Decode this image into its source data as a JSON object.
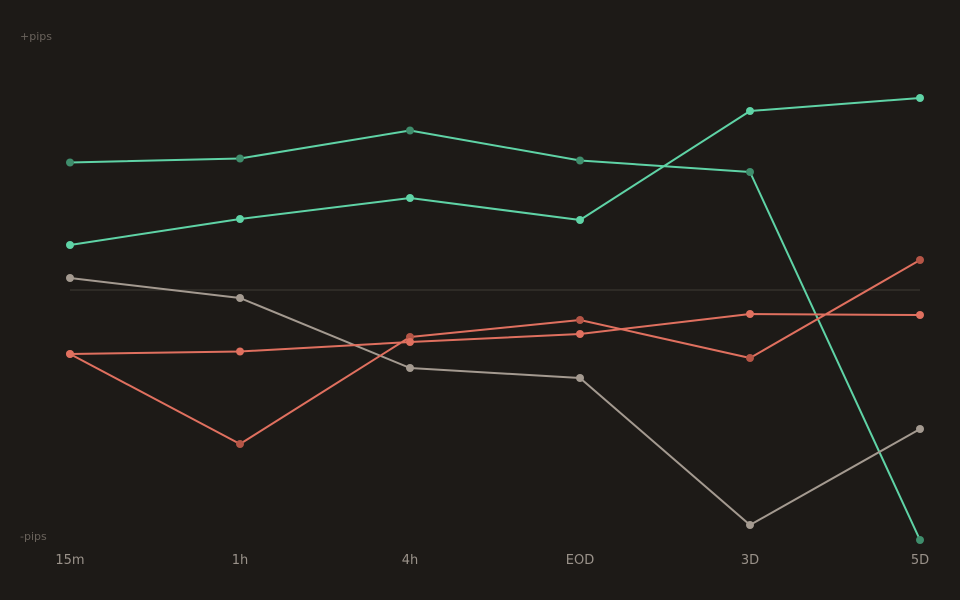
{
  "chart_data": {
    "type": "line",
    "categories": [
      "15m",
      "1h",
      "4h",
      "EOD",
      "3D",
      "5D"
    ],
    "y_top_label": "+pips",
    "y_bottom_label": "-pips",
    "ylim": [
      -100,
      100
    ],
    "baseline": 0,
    "grid": false,
    "legend": "none",
    "colors": {
      "background": "#1d1a17",
      "baseline": "#35312c",
      "tick_text": "#9a928a",
      "label_text": "#6a635c"
    },
    "series": [
      {
        "color": "#5fd3a6",
        "marker": "#3f8d6c",
        "values": [
          51,
          52.6,
          63.8,
          51.8,
          47.2,
          -100
        ]
      },
      {
        "color": "#5fd3a6",
        "marker": "#5fd3a6",
        "values": [
          18,
          28.4,
          36.8,
          28,
          71.6,
          76.8
        ]
      },
      {
        "color": "#a49a90",
        "marker": "#a49a90",
        "values": [
          4.8,
          -3.2,
          -31.2,
          -35.2,
          -94,
          -55.6
        ]
      },
      {
        "color": "#e0705f",
        "marker": "#b55546",
        "values": [
          -25.6,
          -61.6,
          -18.8,
          -12,
          -27.2,
          12
        ]
      },
      {
        "color": "#e0705f",
        "marker": "#e0705f",
        "values": [
          -25.6,
          -24.6,
          -20.8,
          -17.6,
          -9.6,
          -10
        ]
      }
    ]
  }
}
